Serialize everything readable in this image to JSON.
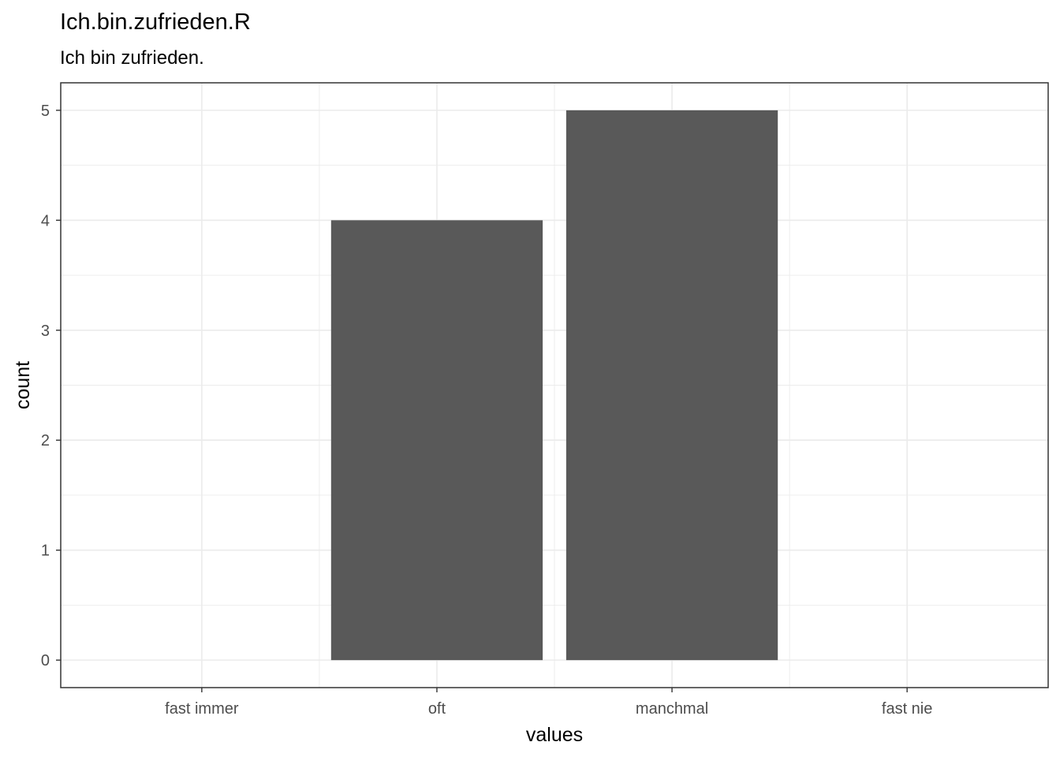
{
  "chart_data": {
    "type": "bar",
    "title": "Ich.bin.zufrieden.R",
    "subtitle": "Ich bin zufrieden.",
    "xlabel": "values",
    "ylabel": "count",
    "categories": [
      "fast immer",
      "oft",
      "manchmal",
      "fast nie"
    ],
    "values": [
      0,
      4,
      5,
      0
    ],
    "yticks": [
      0,
      1,
      2,
      3,
      4,
      5
    ],
    "ylim": [
      -0.25,
      5.25
    ],
    "grid": true,
    "bar_color": "#595959",
    "grid_color": "#ebebeb",
    "panel_border_color": "#333333"
  }
}
